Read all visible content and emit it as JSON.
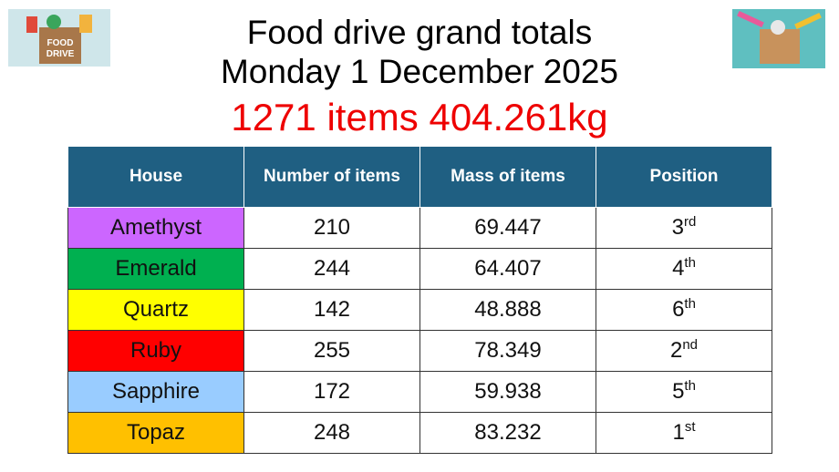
{
  "header": {
    "title_line1": "Food drive grand totals",
    "title_line2": "Monday 1 December 2025",
    "totals": "1271 items 404.261kg"
  },
  "logos": [
    {
      "label_line1": "FOOD",
      "label_line2": "DRIVE"
    }
  ],
  "table": {
    "columns": [
      "House",
      "Number of items",
      "Mass of items",
      "Position"
    ],
    "rows": [
      {
        "house": "Amethyst",
        "color": "#cc66ff",
        "items": "210",
        "mass": "69.447",
        "position": "3",
        "suffix": "rd"
      },
      {
        "house": "Emerald",
        "color": "#00b050",
        "items": "244",
        "mass": "64.407",
        "position": "4",
        "suffix": "th"
      },
      {
        "house": "Quartz",
        "color": "#ffff00",
        "items": "142",
        "mass": "48.888",
        "position": "6",
        "suffix": "th"
      },
      {
        "house": "Ruby",
        "color": "#ff0000",
        "items": "255",
        "mass": "78.349",
        "position": "2",
        "suffix": "nd"
      },
      {
        "house": "Sapphire",
        "color": "#99ccff",
        "items": "172",
        "mass": "59.938",
        "position": "5",
        "suffix": "th"
      },
      {
        "house": "Topaz",
        "color": "#ffc000",
        "items": "248",
        "mass": "83.232",
        "position": "1",
        "suffix": "st"
      }
    ]
  }
}
